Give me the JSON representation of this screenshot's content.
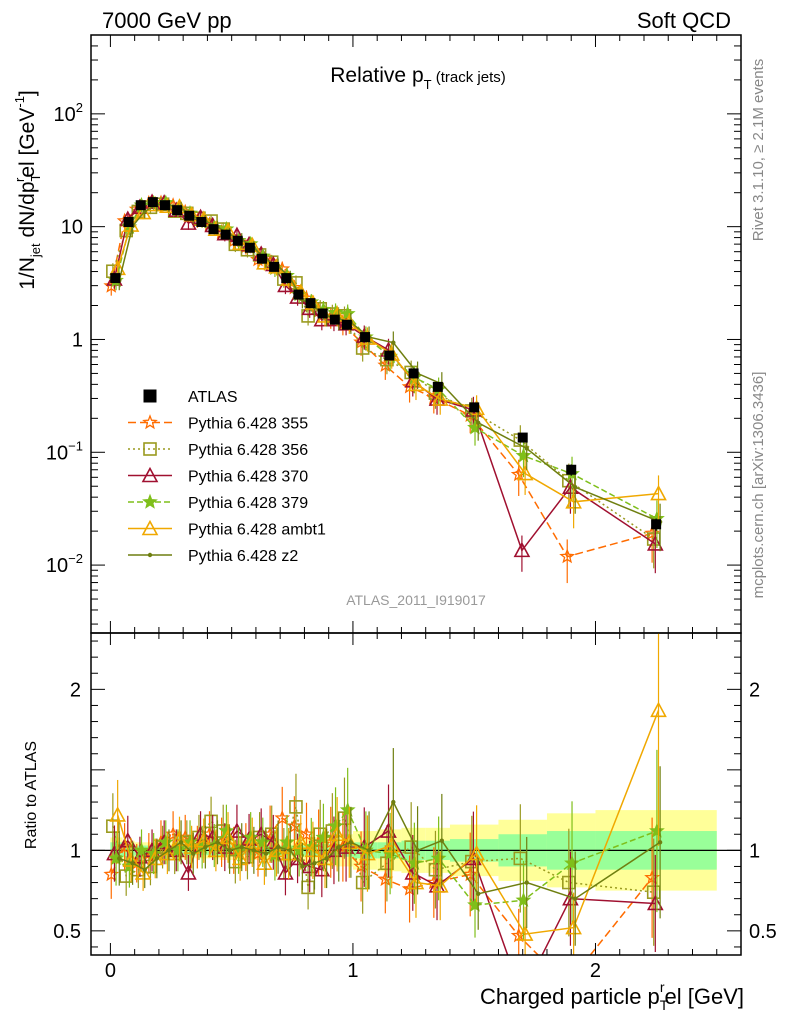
{
  "header": {
    "left": "7000 GeV pp",
    "right": "Soft QCD"
  },
  "side_labels": {
    "rivet": "Rivet 3.1.10, ≥ 2.1M events",
    "mcplots": "mcplots.cern.ch [arXiv:1306.3436]"
  },
  "chart_data": {
    "type": "line",
    "title": {
      "main": "Relative p",
      "sub": "T",
      "suffix": " (track jets)"
    },
    "analysis_id": "ATLAS_2011_I919017",
    "xlabel": {
      "pre": "Charged particle p",
      "sub": "T",
      "sup": "r",
      "post": "el [GeV]"
    },
    "xlim": [
      -0.08,
      2.6
    ],
    "x_ticks": [
      "0",
      "1",
      "2"
    ],
    "main_panel": {
      "ylabel": "1/N_jet dN/dp_T^r el [GeV^-1]",
      "ylabel_parts": {
        "a": "1/N",
        "a_sub": "jet",
        "b": " dN/dp",
        "b_sub": "T",
        "b_sup": "r",
        "c": "el [GeV",
        "c_sup": "-1",
        "d": "]"
      },
      "yscale": "log",
      "ylim": [
        0.0025,
        500
      ],
      "y_ticks": [
        "10^-2",
        "10^-1",
        "1",
        "10",
        "10^2"
      ],
      "y_tick_labels": [
        {
          "base": "10",
          "exp": "−2",
          "value": 0.01
        },
        {
          "base": "10",
          "exp": "−1",
          "value": 0.1
        },
        {
          "base": "1",
          "exp": "",
          "value": 1
        },
        {
          "base": "10",
          "exp": "",
          "value": 10
        },
        {
          "base": "10",
          "exp": "2",
          "value": 100
        }
      ]
    },
    "ratio_panel": {
      "ylabel": "Ratio to ATLAS",
      "ylim": [
        0.35,
        2.35
      ],
      "y_ticks": [
        "0.5",
        "1",
        "2"
      ]
    },
    "x": [
      0.02,
      0.075,
      0.125,
      0.175,
      0.225,
      0.275,
      0.325,
      0.375,
      0.425,
      0.475,
      0.525,
      0.575,
      0.625,
      0.675,
      0.725,
      0.775,
      0.825,
      0.875,
      0.925,
      0.975,
      1.05,
      1.15,
      1.25,
      1.35,
      1.5,
      1.7,
      1.9,
      2.25
    ],
    "data": {
      "name": "ATLAS",
      "values": [
        3.5,
        11.0,
        15.5,
        16.5,
        15.5,
        14.0,
        12.5,
        11.0,
        9.5,
        8.5,
        7.5,
        6.5,
        5.2,
        4.4,
        3.5,
        2.5,
        2.1,
        1.7,
        1.5,
        1.35,
        1.05,
        0.72,
        0.5,
        0.38,
        0.25,
        0.135,
        0.07,
        0.023
      ]
    },
    "ratio_bands": {
      "edges": [
        0.0,
        0.05,
        0.1,
        0.15,
        0.2,
        0.25,
        0.3,
        0.35,
        0.4,
        0.45,
        0.5,
        0.55,
        0.6,
        0.65,
        0.7,
        0.75,
        0.8,
        0.85,
        0.9,
        0.95,
        1.0,
        1.1,
        1.2,
        1.3,
        1.4,
        1.6,
        1.8,
        2.0,
        2.5
      ],
      "inner": [
        0.05,
        0.04,
        0.03,
        0.03,
        0.03,
        0.03,
        0.03,
        0.03,
        0.03,
        0.03,
        0.03,
        0.03,
        0.03,
        0.03,
        0.03,
        0.03,
        0.04,
        0.04,
        0.04,
        0.04,
        0.05,
        0.05,
        0.06,
        0.06,
        0.07,
        0.1,
        0.12,
        0.12
      ],
      "outer": [
        0.08,
        0.06,
        0.05,
        0.05,
        0.05,
        0.05,
        0.05,
        0.05,
        0.05,
        0.06,
        0.06,
        0.06,
        0.06,
        0.07,
        0.07,
        0.07,
        0.08,
        0.09,
        0.1,
        0.1,
        0.12,
        0.13,
        0.14,
        0.14,
        0.16,
        0.19,
        0.23,
        0.25
      ]
    },
    "series": [
      {
        "name": "Pythia 6.428 355",
        "color": "#ff6c00",
        "dash": "8,4",
        "marker": "star-open",
        "ratio": [
          0.85,
          1.02,
          0.92,
          0.98,
          1.05,
          1.1,
          1.08,
          1.02,
          1.1,
          1.05,
          1.0,
          1.02,
          0.98,
          1.1,
          1.2,
          1.15,
          1.1,
          1.05,
          1.05,
          1.02,
          0.9,
          0.82,
          0.76,
          0.8,
          0.85,
          0.47,
          0.17,
          0.83
        ]
      },
      {
        "name": "Pythia 6.428 356",
        "color": "#9a9a1f",
        "dash": "2,3",
        "marker": "square-open",
        "ratio": [
          1.15,
          0.84,
          0.88,
          0.9,
          1.02,
          0.98,
          1.05,
          1.08,
          1.18,
          1.12,
          0.93,
          0.96,
          1.08,
          1.1,
          0.98,
          1.27,
          0.77,
          1.1,
          1.12,
          1.2,
          0.8,
          0.92,
          1.02,
          0.88,
          0.93,
          0.95,
          0.8,
          0.74
        ]
      },
      {
        "name": "Pythia 6.428 370",
        "color": "#a01030",
        "dash": "",
        "marker": "triangle-open",
        "ratio": [
          0.98,
          1.06,
          0.96,
          1.0,
          1.05,
          1.0,
          0.86,
          1.1,
          1.08,
          1.02,
          1.12,
          1.07,
          1.1,
          1.05,
          0.86,
          0.95,
          0.9,
          0.88,
          1.0,
          1.02,
          1.02,
          1.12,
          0.86,
          0.78,
          0.95,
          0.1,
          0.7,
          0.67
        ]
      },
      {
        "name": "Pythia 6.428 379",
        "color": "#7fbf1a",
        "dash": "6,3",
        "marker": "star-filled",
        "ratio": [
          0.95,
          0.9,
          1.0,
          0.98,
          1.05,
          1.0,
          1.05,
          1.02,
          1.03,
          1.12,
          1.0,
          1.08,
          1.05,
          0.97,
          1.05,
          1.0,
          1.02,
          1.08,
          1.15,
          1.25,
          1.0,
          0.98,
          0.92,
          0.95,
          0.66,
          0.69,
          0.92,
          1.12
        ]
      },
      {
        "name": "Pythia 6.428 ambt1",
        "color": "#f0a800",
        "dash": "",
        "marker": "triangle-open",
        "ratio": [
          1.22,
          0.94,
          0.86,
          0.95,
          0.98,
          1.07,
          1.02,
          1.06,
          1.0,
          1.08,
          0.95,
          1.05,
          0.92,
          1.0,
          0.98,
          1.05,
          1.0,
          0.95,
          1.1,
          1.05,
          0.98,
          1.03,
          0.8,
          0.78,
          0.98,
          0.48,
          0.52,
          1.87
        ]
      },
      {
        "name": "Pythia 6.428 z2",
        "color": "#6f7f10",
        "dash": "",
        "marker": "dot",
        "ratio": [
          0.95,
          0.92,
          0.88,
          0.95,
          1.0,
          1.05,
          0.98,
          1.02,
          1.05,
          1.0,
          1.02,
          1.0,
          0.98,
          1.02,
          1.0,
          0.9,
          0.92,
          0.95,
          1.02,
          1.05,
          1.0,
          1.3,
          1.0,
          1.06,
          0.73,
          0.8,
          0.7,
          1.05
        ]
      }
    ],
    "legend_placement": "lower-left"
  }
}
